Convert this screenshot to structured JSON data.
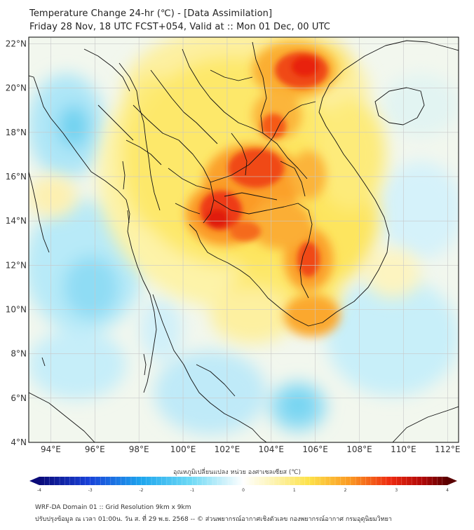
{
  "header": {
    "title_line1": "Temperature Change 24-hr (℃) - [Data Assimilation]",
    "title_line2": "Friday 28 Nov, 18 UTC FCST+054, Valid at :: Mon 01 Dec, 00 UTC"
  },
  "map": {
    "lat_labels": [
      "22°N",
      "20°N",
      "18°N",
      "16°N",
      "14°N",
      "12°N",
      "10°N",
      "8°N",
      "6°N",
      "4°N"
    ],
    "lon_labels": [
      "94°E",
      "96°E",
      "98°E",
      "100°E",
      "102°E",
      "104°E",
      "106°E",
      "108°E",
      "110°E",
      "112°E"
    ],
    "lat_range": [
      4,
      22.3
    ],
    "lon_range": [
      93,
      112.5
    ],
    "colors": {
      "ocean_base": "#f2f7ee",
      "warm_yellow": "#fde24a",
      "warm_orange": "#fb8c1e",
      "hot_red": "#ee2a10",
      "cool_cyan": "#7fd8f2",
      "border": "#111111",
      "grid": "#c8c8c8"
    }
  },
  "colorbar": {
    "title": "อุณหภูมิเปลี่ยนแปลง หน่วย องศาเซลเซียส (℃)",
    "ticks": [
      "-4",
      "-3",
      "-2",
      "-1",
      "0",
      "1",
      "2",
      "3",
      "4"
    ],
    "range": [
      -4,
      4
    ]
  },
  "footer": {
    "line1": "WRF-DA Domain 01 :: Grid Resolution 9km x 9km",
    "line2": "ปรับปรุงข้อมูล ณ เวลา 01:00น. วัน ส. ที่ 29 พ.ย. 2568 -- © ส่วนพยากรณ์อากาศเชิงตัวเลข กองพยากรณ์อากาศ กรมอุตุนิยมวิทยา"
  }
}
